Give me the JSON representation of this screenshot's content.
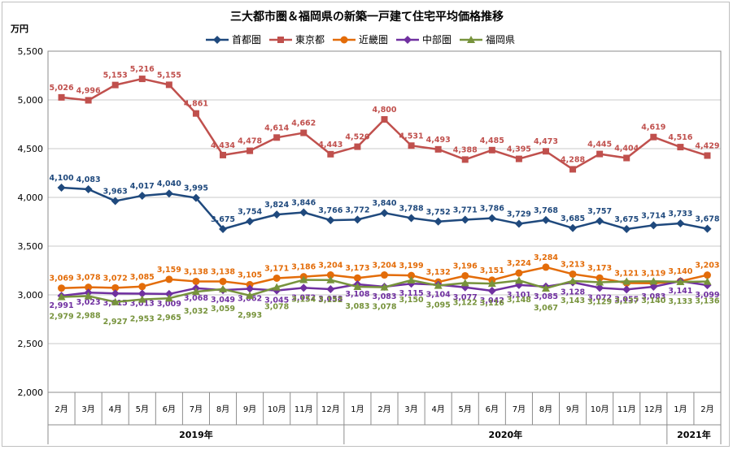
{
  "chart_data": {
    "type": "line",
    "title": "三大都市圏＆福岡県の新築一戸建て住宅平均価格推移",
    "ylabel": "万円",
    "ylim": [
      2000,
      5500
    ],
    "yticks": [
      2000,
      2500,
      3000,
      3500,
      4000,
      4500,
      5000,
      5500
    ],
    "ytick_labels": [
      "2,000",
      "2,500",
      "3,000",
      "3,500",
      "4,000",
      "4,500",
      "5,000",
      "5,500"
    ],
    "grid": true,
    "legend_position": "top",
    "categories": [
      "2月",
      "3月",
      "4月",
      "5月",
      "6月",
      "7月",
      "8月",
      "9月",
      "10月",
      "11月",
      "12月",
      "1月",
      "2月",
      "3月",
      "4月",
      "5月",
      "6月",
      "7月",
      "8月",
      "9月",
      "10月",
      "11月",
      "12月",
      "1月",
      "2月"
    ],
    "year_groups": [
      {
        "label": "2019年",
        "start": 0,
        "end": 10
      },
      {
        "label": "2020年",
        "start": 11,
        "end": 22
      },
      {
        "label": "2021年",
        "start": 23,
        "end": 24
      }
    ],
    "series": [
      {
        "name": "首都圏",
        "color": "#1f497d",
        "marker": "diamond",
        "label_position": "above",
        "values": [
          4100,
          4083,
          3963,
          4017,
          4040,
          3995,
          3675,
          3754,
          3824,
          3846,
          3766,
          3772,
          3840,
          3788,
          3752,
          3771,
          3786,
          3729,
          3768,
          3685,
          3757,
          3675,
          3714,
          3733,
          3678
        ],
        "labels": [
          "4,100",
          "4,083",
          "3,963",
          "4,017",
          "4,040",
          "3,995",
          "3,675",
          "3,754",
          "3,824",
          "3,846",
          "3,766",
          "3,772",
          "3,840",
          "3,788",
          "3,752",
          "3,771",
          "3,786",
          "3,729",
          "3,768",
          "3,685",
          "3,757",
          "3,675",
          "3,714",
          "3,733",
          "3,678"
        ]
      },
      {
        "name": "東京都",
        "color": "#c0504d",
        "marker": "square",
        "label_position": "above",
        "values": [
          5026,
          4996,
          5153,
          5216,
          5155,
          4861,
          4434,
          4478,
          4614,
          4662,
          4443,
          4520,
          4800,
          4531,
          4493,
          4388,
          4485,
          4395,
          4473,
          4288,
          4445,
          4404,
          4619,
          4516,
          4429
        ],
        "labels": [
          "5,026",
          "4,996",
          "5,153",
          "5,216",
          "5,155",
          "4,861",
          "4,434",
          "4,478",
          "4,614",
          "4,662",
          "4,443",
          "4,520",
          "4,800",
          "4,531",
          "4,493",
          "4,388",
          "4,485",
          "4,395",
          "4,473",
          "4,288",
          "4,445",
          "4,404",
          "4,619",
          "4,516",
          "4,429"
        ]
      },
      {
        "name": "近畿圏",
        "color": "#e36c09",
        "marker": "circle",
        "label_position": "above",
        "values": [
          3069,
          3078,
          3072,
          3085,
          3159,
          3138,
          3138,
          3105,
          3171,
          3186,
          3204,
          3173,
          3204,
          3199,
          3132,
          3196,
          3151,
          3224,
          3284,
          3213,
          3173,
          3121,
          3119,
          3140,
          3203
        ],
        "labels": [
          "3,069",
          "3,078",
          "3,072",
          "3,085",
          "3,159",
          "3,138",
          "3,138",
          "3,105",
          "3,171",
          "3,186",
          "3,204",
          "3,173",
          "3,204",
          "3,199",
          "3,132",
          "3,196",
          "3,151",
          "3,224",
          "3,284",
          "3,213",
          "3,173",
          "3,121",
          "3,119",
          "3,140",
          "3,203"
        ]
      },
      {
        "name": "中部圏",
        "color": "#7030a0",
        "marker": "diamond",
        "label_position": "below",
        "values": [
          2991,
          3023,
          3015,
          3013,
          3009,
          3068,
          3049,
          3062,
          3045,
          3072,
          3058,
          3108,
          3083,
          3115,
          3104,
          3077,
          3042,
          3101,
          3085,
          3128,
          3072,
          3055,
          3083,
          3141,
          3099
        ],
        "labels": [
          "2,991",
          "3,023",
          "3,015",
          "3,013",
          "3,009",
          "3,068",
          "3,049",
          "3,062",
          "3,045",
          "3,072",
          "3,058",
          "3,108",
          "3,083",
          "3,115",
          "3,104",
          "3,077",
          "3,042",
          "3,101",
          "3,085",
          "3,128",
          "3,072",
          "3,055",
          "3,083",
          "3,141",
          "3,099"
        ]
      },
      {
        "name": "福岡県",
        "color": "#77933c",
        "marker": "triangle",
        "label_position": "below",
        "values": [
          2979,
          2988,
          2927,
          2953,
          2965,
          3032,
          3059,
          2993,
          3078,
          3154,
          3152,
          3083,
          3078,
          3150,
          3095,
          3122,
          3116,
          3148,
          3067,
          3143,
          3129,
          3137,
          3140,
          3133,
          3136
        ],
        "labels": [
          "2,979",
          "2,988",
          "2,927",
          "2,953",
          "2,965",
          "3,032",
          "3,059",
          "2,993",
          "3,078",
          "3,154",
          "3,152",
          "3,083",
          "3,078",
          "3,150",
          "3,095",
          "3,122",
          "3,116",
          "3,148",
          "3,067",
          "3,143",
          "3,129",
          "3,137",
          "3,140",
          "3,133",
          "3,136"
        ]
      }
    ]
  }
}
